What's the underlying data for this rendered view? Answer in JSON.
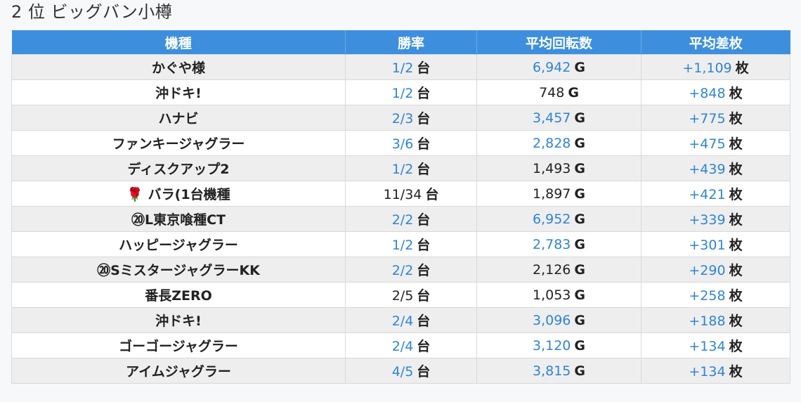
{
  "page": {
    "title": "2 位 ビッグバン小樽"
  },
  "colors": {
    "header_bg": "#3d8fde",
    "link_blue": "#2f84d6",
    "row_alt": "#eeeeef"
  },
  "table": {
    "headers": [
      "機種",
      "勝率",
      "平均回転数",
      "平均差枚"
    ],
    "rows": [
      {
        "machine": "かぐや様",
        "win": "1/2",
        "win_blue": true,
        "spins": "6,942",
        "spins_blue": true,
        "diff": "+1,109",
        "win_unit": "台",
        "spins_unit": "G",
        "diff_unit": "枚"
      },
      {
        "machine": "沖ドキ!",
        "win": "1/2",
        "win_blue": true,
        "spins": "748",
        "spins_blue": false,
        "diff": "+848",
        "win_unit": "台",
        "spins_unit": "G",
        "diff_unit": "枚"
      },
      {
        "machine": "ハナビ",
        "win": "2/3",
        "win_blue": true,
        "spins": "3,457",
        "spins_blue": true,
        "diff": "+775",
        "win_unit": "台",
        "spins_unit": "G",
        "diff_unit": "枚"
      },
      {
        "machine": "ファンキージャグラー",
        "win": "3/6",
        "win_blue": true,
        "spins": "2,828",
        "spins_blue": true,
        "diff": "+475",
        "win_unit": "台",
        "spins_unit": "G",
        "diff_unit": "枚"
      },
      {
        "machine": "ディスクアップ2",
        "win": "1/2",
        "win_blue": true,
        "spins": "1,493",
        "spins_blue": false,
        "diff": "+439",
        "win_unit": "台",
        "spins_unit": "G",
        "diff_unit": "枚"
      },
      {
        "machine": "🌹 バラ(1台機種",
        "win": "11/34",
        "win_blue": false,
        "spins": "1,897",
        "spins_blue": false,
        "diff": "+421",
        "win_unit": "台",
        "spins_unit": "G",
        "diff_unit": "枚"
      },
      {
        "machine": "⑳L東京喰種CT",
        "win": "2/2",
        "win_blue": true,
        "spins": "6,952",
        "spins_blue": true,
        "diff": "+339",
        "win_unit": "台",
        "spins_unit": "G",
        "diff_unit": "枚"
      },
      {
        "machine": "ハッピージャグラー",
        "win": "1/2",
        "win_blue": true,
        "spins": "2,783",
        "spins_blue": true,
        "diff": "+301",
        "win_unit": "台",
        "spins_unit": "G",
        "diff_unit": "枚"
      },
      {
        "machine": "⑳SミスタージャグラーKK",
        "win": "2/2",
        "win_blue": true,
        "spins": "2,126",
        "spins_blue": false,
        "diff": "+290",
        "win_unit": "台",
        "spins_unit": "G",
        "diff_unit": "枚"
      },
      {
        "machine": "番長ZERO",
        "win": "2/5",
        "win_blue": false,
        "spins": "1,053",
        "spins_blue": false,
        "diff": "+258",
        "win_unit": "台",
        "spins_unit": "G",
        "diff_unit": "枚"
      },
      {
        "machine": "沖ドキ!",
        "win": "2/4",
        "win_blue": true,
        "spins": "3,096",
        "spins_blue": true,
        "diff": "+188",
        "win_unit": "台",
        "spins_unit": "G",
        "diff_unit": "枚"
      },
      {
        "machine": "ゴーゴージャグラー",
        "win": "2/4",
        "win_blue": true,
        "spins": "3,120",
        "spins_blue": true,
        "diff": "+134",
        "win_unit": "台",
        "spins_unit": "G",
        "diff_unit": "枚"
      },
      {
        "machine": "アイムジャグラー",
        "win": "4/5",
        "win_blue": true,
        "spins": "3,815",
        "spins_blue": true,
        "diff": "+134",
        "win_unit": "台",
        "spins_unit": "G",
        "diff_unit": "枚"
      }
    ]
  }
}
